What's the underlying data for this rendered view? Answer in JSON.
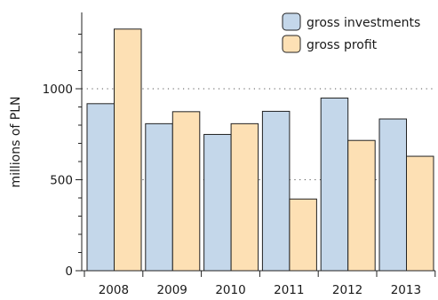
{
  "chart_data": {
    "type": "bar",
    "categories": [
      "2008",
      "2009",
      "2010",
      "2011",
      "2012",
      "2013"
    ],
    "series": [
      {
        "name": "gross investments",
        "values": [
          918,
          808,
          749,
          876,
          949,
          834
        ],
        "color": "#c4d7ea"
      },
      {
        "name": "gross profit",
        "values": [
          1328,
          874,
          808,
          394,
          716,
          629
        ],
        "color": "#fde0b4"
      }
    ],
    "title": "",
    "xlabel": "",
    "ylabel": "millions of PLN",
    "ylim": [
      0,
      1400
    ],
    "yticks": [
      0,
      500,
      1000
    ],
    "grid": "dotted horizontal at 500 and 1000",
    "legend_position": "top-right"
  }
}
